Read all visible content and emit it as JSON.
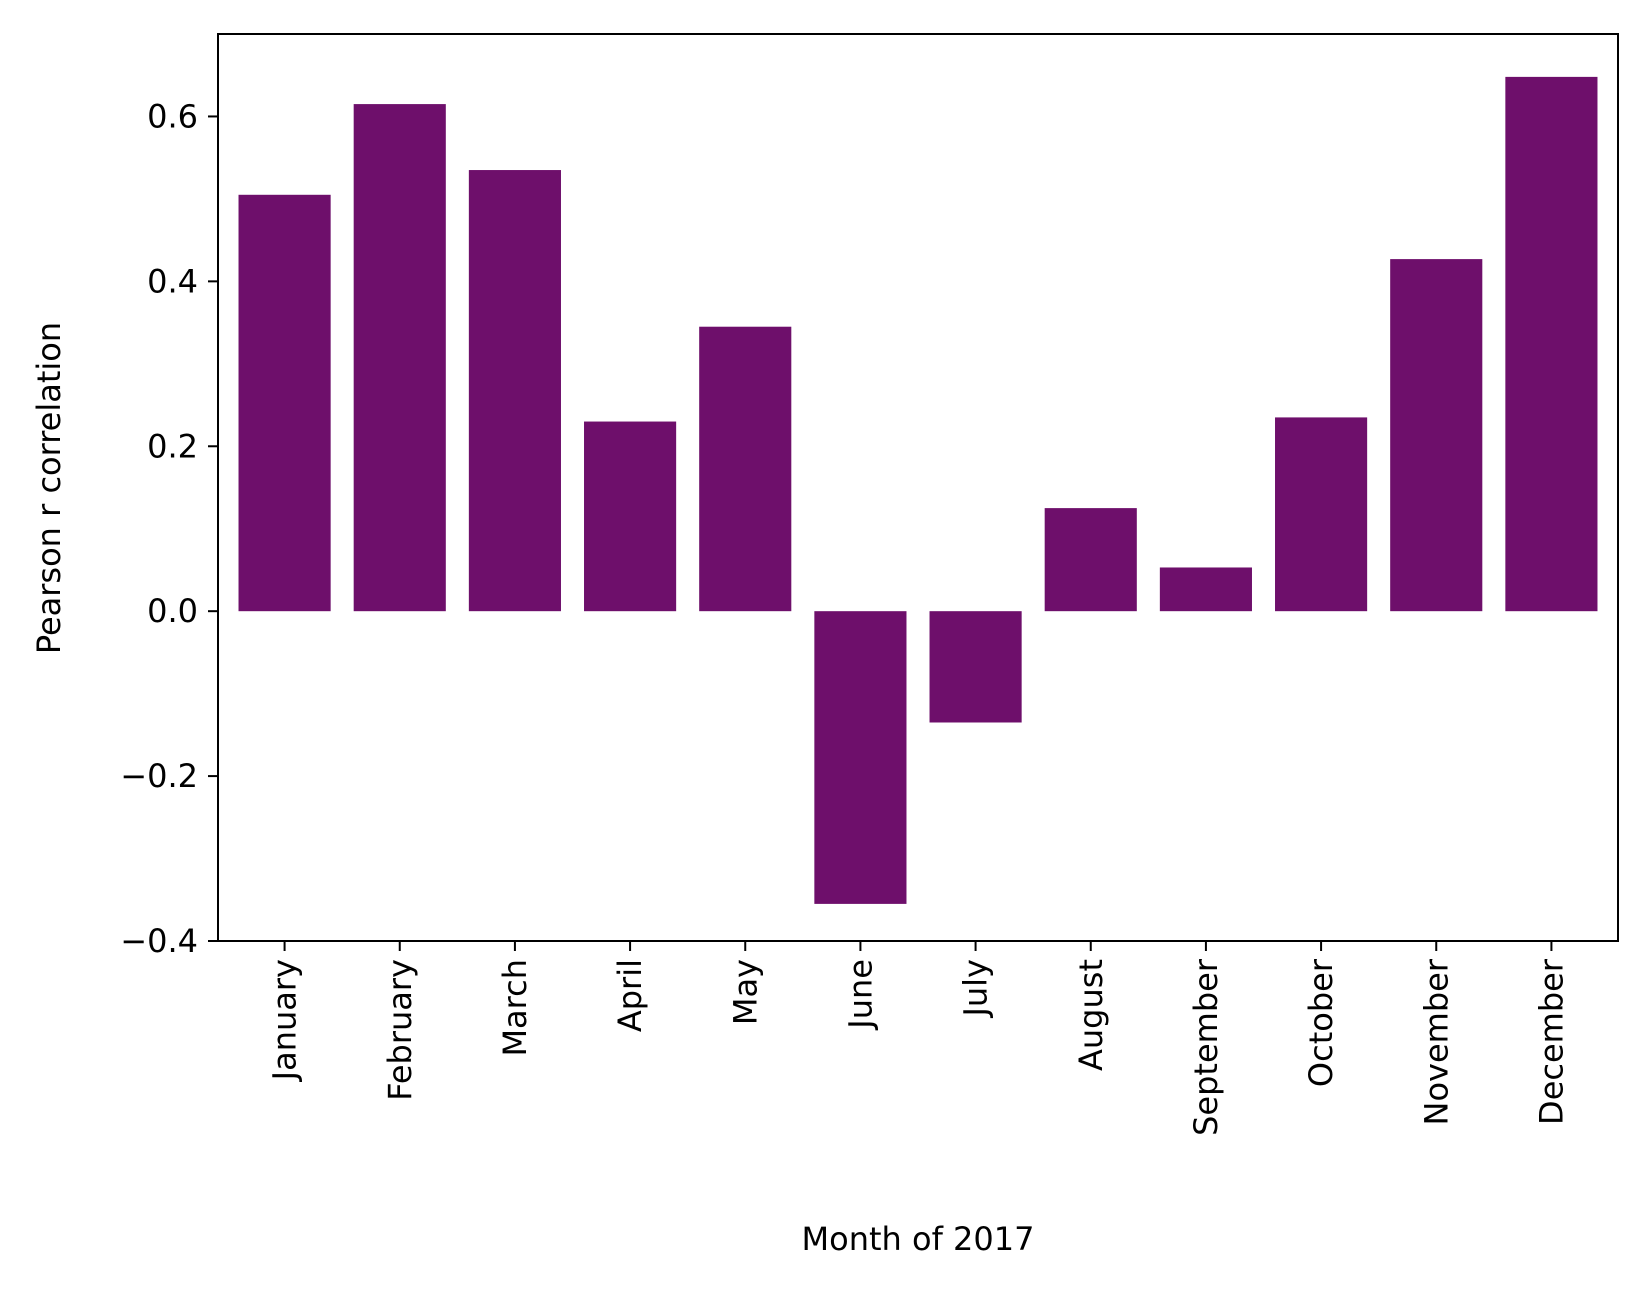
{
  "chart_data": {
    "type": "bar",
    "title": "",
    "xlabel": "Month of 2017",
    "ylabel": "Pearson r correlation",
    "categories": [
      "January",
      "February",
      "March",
      "April",
      "May",
      "June",
      "July",
      "August",
      "September",
      "October",
      "November",
      "December"
    ],
    "values": [
      0.505,
      0.615,
      0.535,
      0.23,
      0.345,
      -0.355,
      -0.135,
      0.125,
      0.053,
      0.235,
      0.427,
      0.648
    ],
    "ylim": [
      -0.4,
      0.7
    ],
    "yticks": [
      -0.4,
      -0.2,
      0.0,
      0.2,
      0.4,
      0.6
    ],
    "ytick_labels": [
      "−0.4",
      "−0.2",
      "0.0",
      "0.2",
      "0.4",
      "0.6"
    ],
    "bar_color": "#6e0f6b",
    "grid": false,
    "legend": "none"
  }
}
